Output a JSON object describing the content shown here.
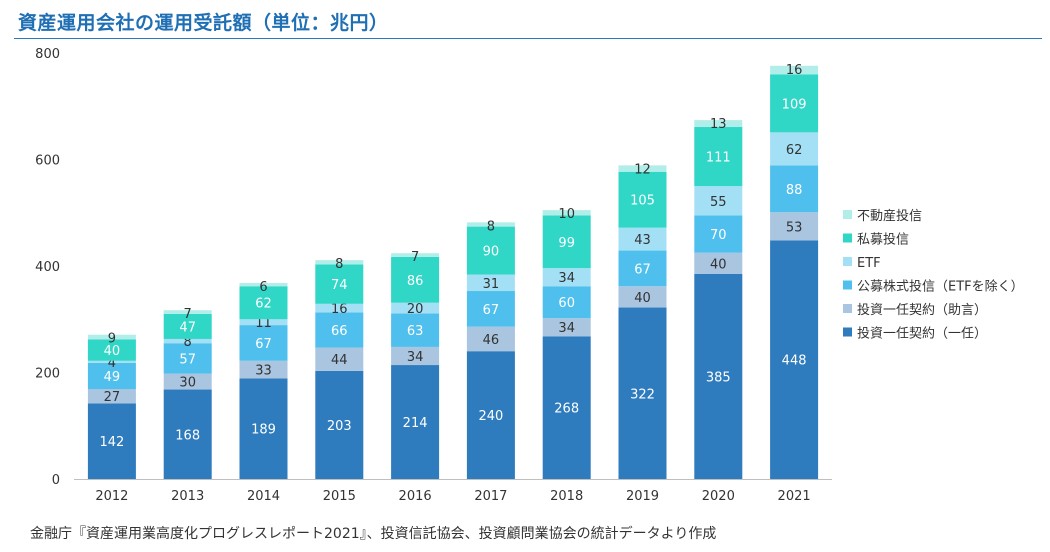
{
  "title": "資産運用会社の運用受託額（単位：兆円）",
  "source": "金融庁『資産運用業高度化プログレスレポート2021』、投資信託協会、投資顧問業協会の統計データより作成",
  "chart_data": {
    "type": "bar",
    "stacked": true,
    "categories": [
      "2012",
      "2013",
      "2014",
      "2015",
      "2016",
      "2017",
      "2018",
      "2019",
      "2020",
      "2021"
    ],
    "ylim": [
      0,
      800
    ],
    "yticks": [
      0,
      200,
      400,
      600,
      800
    ],
    "legend_position": "right",
    "grid": false,
    "series": [
      {
        "name": "投資一任契約（一任）",
        "color": "#2e7bbd",
        "label_color": "#ffffff",
        "values": [
          142,
          168,
          189,
          203,
          214,
          240,
          268,
          322,
          385,
          448
        ]
      },
      {
        "name": "投資一任契約（助言）",
        "color": "#a9c5e0",
        "label_color": "#333333",
        "values": [
          27,
          30,
          33,
          44,
          34,
          46,
          34,
          40,
          40,
          53
        ]
      },
      {
        "name": "公募株式投信（ETFを除く）",
        "color": "#4fc0ee",
        "label_color": "#ffffff",
        "values": [
          49,
          57,
          67,
          66,
          63,
          67,
          60,
          67,
          70,
          88
        ]
      },
      {
        "name": "ETF",
        "color": "#a4e0f5",
        "label_color": "#333333",
        "values": [
          4,
          8,
          11,
          16,
          20,
          31,
          34,
          43,
          55,
          62
        ]
      },
      {
        "name": "私募投信",
        "color": "#30d6c6",
        "label_color": "#ffffff",
        "values": [
          40,
          47,
          62,
          74,
          86,
          90,
          99,
          105,
          111,
          109
        ]
      },
      {
        "name": "不動産投信",
        "color": "#b2eee9",
        "label_color": "#333333",
        "values": [
          9,
          7,
          6,
          8,
          7,
          8,
          10,
          12,
          13,
          16
        ]
      }
    ]
  }
}
